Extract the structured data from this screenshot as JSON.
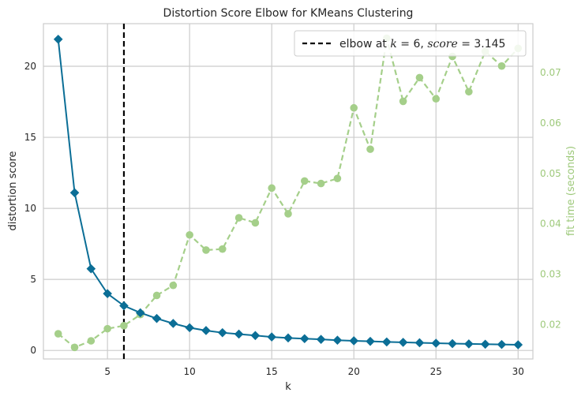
{
  "chart_data": {
    "type": "line",
    "title": "Distortion Score Elbow for KMeans Clustering",
    "xlabel": "k",
    "ylabel": "distortion score",
    "y2label": "fit time (seconds)",
    "xlim": [
      1.1,
      30.9
    ],
    "ylim": [
      -0.6,
      23.0
    ],
    "y2lim": [
      0.0132,
      0.0797
    ],
    "x_ticks": [
      5,
      10,
      15,
      20,
      25,
      30
    ],
    "y_ticks": [
      0,
      5,
      10,
      15,
      20
    ],
    "y2_ticks": [
      0.02,
      0.03,
      0.04,
      0.05,
      0.06,
      0.07
    ],
    "y2_tick_labels": [
      "0.02",
      "0.03",
      "0.04",
      "0.05",
      "0.06",
      "0.07"
    ],
    "grid": true,
    "legend_position": "top-right",
    "legend": {
      "prefix": "elbow at ",
      "k_var": "k",
      "eq1": " = 6, ",
      "score_var": "score",
      "eq2": " = 3.145"
    },
    "elbow": {
      "k": 6,
      "score": 3.145
    },
    "series": [
      {
        "name": "distortion score",
        "axis": "left",
        "color": "#0b6e96",
        "marker": "diamond",
        "x": [
          2,
          3,
          4,
          5,
          6,
          7,
          8,
          9,
          10,
          11,
          12,
          13,
          14,
          15,
          16,
          17,
          18,
          19,
          20,
          21,
          22,
          23,
          24,
          25,
          26,
          27,
          28,
          29,
          30
        ],
        "values": [
          21.9,
          11.1,
          5.75,
          4.0,
          3.145,
          2.65,
          2.25,
          1.9,
          1.6,
          1.4,
          1.25,
          1.15,
          1.05,
          0.95,
          0.88,
          0.83,
          0.78,
          0.72,
          0.68,
          0.64,
          0.6,
          0.57,
          0.54,
          0.51,
          0.48,
          0.46,
          0.44,
          0.42,
          0.4
        ]
      },
      {
        "name": "fit time (seconds)",
        "axis": "right",
        "color": "#a5cf8a",
        "marker": "circle",
        "x": [
          2,
          3,
          4,
          5,
          6,
          7,
          8,
          9,
          10,
          11,
          12,
          13,
          14,
          15,
          16,
          17,
          18,
          19,
          20,
          21,
          22,
          23,
          24,
          25,
          26,
          27,
          28,
          29,
          30
        ],
        "values": [
          0.0182,
          0.0155,
          0.0168,
          0.0192,
          0.0198,
          0.022,
          0.0258,
          0.0278,
          0.0378,
          0.0348,
          0.035,
          0.0412,
          0.0402,
          0.0471,
          0.042,
          0.0485,
          0.048,
          0.049,
          0.063,
          0.0548,
          0.0768,
          0.0643,
          0.069,
          0.0648,
          0.0732,
          0.0662,
          0.0742,
          0.0713,
          0.0748
        ]
      }
    ]
  }
}
